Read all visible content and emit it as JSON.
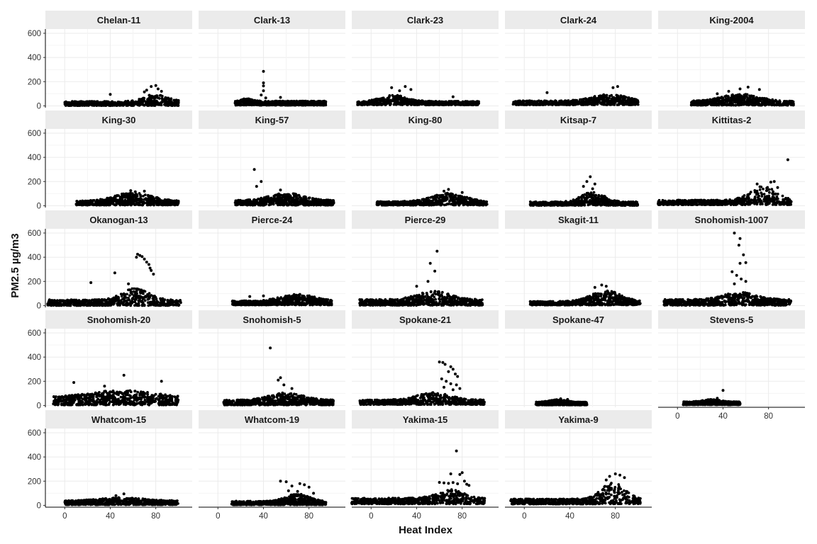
{
  "chart_data": {
    "type": "scatter",
    "layout": "faceted",
    "xlabel": "Heat Index",
    "ylabel": "PM2.5 µg/m3",
    "xlim": [
      -17,
      112
    ],
    "ylim": [
      -15,
      635
    ],
    "x_ticks": [
      0,
      40,
      80
    ],
    "y_ticks": [
      0,
      200,
      400,
      600
    ],
    "grid": true,
    "marker_color": "#000000",
    "strip_color": "#ebebeb",
    "grid_color": "#ebebeb",
    "facets": [
      {
        "title": "Chelan-11",
        "body": {
          "x_min": 0,
          "x_max": 100,
          "base_y": 22,
          "band": 25,
          "hump_center": 80,
          "hump_width": 14,
          "hump_height": 60
        },
        "outliers": [
          [
            40,
            95
          ],
          [
            76,
            160
          ],
          [
            80,
            168
          ],
          [
            82,
            140
          ],
          [
            72,
            130
          ],
          [
            70,
            115
          ],
          [
            85,
            120
          ]
        ]
      },
      {
        "title": "Clark-13",
        "body": {
          "x_min": 15,
          "x_max": 95,
          "base_y": 25,
          "band": 25,
          "hump_center": 25,
          "hump_width": 8,
          "hump_height": 20
        },
        "outliers": [
          [
            40,
            285
          ],
          [
            40,
            190
          ],
          [
            40,
            165
          ],
          [
            40,
            125
          ],
          [
            38,
            90
          ],
          [
            55,
            70
          ],
          [
            42,
            65
          ]
        ]
      },
      {
        "title": "Clark-23",
        "body": {
          "x_min": -12,
          "x_max": 95,
          "base_y": 25,
          "band": 22,
          "hump_center": 20,
          "hump_width": 16,
          "hump_height": 50
        },
        "outliers": [
          [
            30,
            160
          ],
          [
            18,
            150
          ],
          [
            35,
            135
          ],
          [
            72,
            75
          ],
          [
            25,
            125
          ]
        ]
      },
      {
        "title": "Clark-24",
        "body": {
          "x_min": -10,
          "x_max": 100,
          "base_y": 28,
          "band": 25,
          "hump_center": 75,
          "hump_width": 20,
          "hump_height": 55
        },
        "outliers": [
          [
            82,
            160
          ],
          [
            78,
            150
          ],
          [
            20,
            110
          ]
        ]
      },
      {
        "title": "King-2004",
        "body": {
          "x_min": 12,
          "x_max": 102,
          "base_y": 25,
          "band": 25,
          "hump_center": 55,
          "hump_width": 22,
          "hump_height": 60
        },
        "outliers": [
          [
            62,
            155
          ],
          [
            55,
            140
          ],
          [
            72,
            135
          ],
          [
            45,
            120
          ],
          [
            35,
            100
          ]
        ]
      },
      {
        "title": "King-30",
        "body": {
          "x_min": 10,
          "x_max": 100,
          "base_y": 25,
          "band": 25,
          "hump_center": 60,
          "hump_width": 22,
          "hump_height": 70
        },
        "outliers": [
          [
            58,
            125
          ],
          [
            70,
            120
          ],
          [
            62,
            115
          ]
        ]
      },
      {
        "title": "King-57",
        "body": {
          "x_min": 15,
          "x_max": 102,
          "base_y": 28,
          "band": 30,
          "hump_center": 60,
          "hump_width": 20,
          "hump_height": 60
        },
        "outliers": [
          [
            32,
            300
          ],
          [
            38,
            200
          ],
          [
            34,
            160
          ],
          [
            55,
            130
          ]
        ]
      },
      {
        "title": "King-80",
        "body": {
          "x_min": 5,
          "x_max": 102,
          "base_y": 22,
          "band": 22,
          "hump_center": 68,
          "hump_width": 20,
          "hump_height": 70
        },
        "outliers": [
          [
            68,
            135
          ],
          [
            64,
            120
          ],
          [
            80,
            110
          ]
        ]
      },
      {
        "title": "Kitsap-7",
        "body": {
          "x_min": 5,
          "x_max": 100,
          "base_y": 20,
          "band": 22,
          "hump_center": 60,
          "hump_width": 14,
          "hump_height": 80
        },
        "outliers": [
          [
            58,
            240
          ],
          [
            55,
            200
          ],
          [
            62,
            180
          ],
          [
            52,
            160
          ],
          [
            60,
            140
          ]
        ]
      },
      {
        "title": "Kittitas-2",
        "body": {
          "x_min": -17,
          "x_max": 100,
          "base_y": 30,
          "band": 28,
          "hump_center": 75,
          "hump_width": 16,
          "hump_height": 120
        },
        "outliers": [
          [
            97,
            380
          ],
          [
            85,
            200
          ],
          [
            82,
            195
          ],
          [
            70,
            180
          ],
          [
            88,
            150
          ]
        ]
      },
      {
        "title": "Okanogan-13",
        "body": {
          "x_min": -15,
          "x_max": 102,
          "base_y": 28,
          "band": 35,
          "hump_center": 62,
          "hump_width": 16,
          "hump_height": 95
        },
        "outliers": [
          [
            64,
            425
          ],
          [
            66,
            415
          ],
          [
            68,
            405
          ],
          [
            70,
            385
          ],
          [
            72,
            360
          ],
          [
            74,
            340
          ],
          [
            75,
            310
          ],
          [
            76,
            290
          ],
          [
            78,
            260
          ],
          [
            63,
            400
          ],
          [
            44,
            270
          ],
          [
            23,
            190
          ],
          [
            56,
            180
          ]
        ]
      },
      {
        "title": "Pierce-24",
        "body": {
          "x_min": 12,
          "x_max": 100,
          "base_y": 25,
          "band": 25,
          "hump_center": 70,
          "hump_width": 20,
          "hump_height": 55
        },
        "outliers": [
          [
            40,
            80
          ],
          [
            28,
            75
          ]
        ]
      },
      {
        "title": "Pierce-29",
        "body": {
          "x_min": -10,
          "x_max": 98,
          "base_y": 30,
          "band": 35,
          "hump_center": 55,
          "hump_width": 20,
          "hump_height": 70
        },
        "outliers": [
          [
            58,
            450
          ],
          [
            52,
            350
          ],
          [
            56,
            285
          ],
          [
            50,
            200
          ],
          [
            40,
            160
          ]
        ]
      },
      {
        "title": "Skagit-11",
        "body": {
          "x_min": 5,
          "x_max": 102,
          "base_y": 22,
          "band": 22,
          "hump_center": 72,
          "hump_width": 18,
          "hump_height": 90
        },
        "outliers": [
          [
            68,
            170
          ],
          [
            72,
            160
          ],
          [
            62,
            150
          ]
        ]
      },
      {
        "title": "Snohomish-1007",
        "body": {
          "x_min": -12,
          "x_max": 100,
          "base_y": 30,
          "band": 35,
          "hump_center": 55,
          "hump_width": 20,
          "hump_height": 60
        },
        "outliers": [
          [
            50,
            600
          ],
          [
            55,
            555
          ],
          [
            54,
            500
          ],
          [
            58,
            420
          ],
          [
            60,
            355
          ],
          [
            55,
            350
          ],
          [
            48,
            280
          ],
          [
            52,
            250
          ],
          [
            56,
            220
          ],
          [
            60,
            200
          ],
          [
            50,
            180
          ]
        ]
      },
      {
        "title": "Snohomish-20",
        "body": {
          "x_min": -10,
          "x_max": 100,
          "base_y": 40,
          "band": 45,
          "hump_center": 50,
          "hump_width": 40,
          "hump_height": 60
        },
        "outliers": [
          [
            8,
            190
          ],
          [
            52,
            250
          ],
          [
            85,
            200
          ],
          [
            35,
            160
          ]
        ]
      },
      {
        "title": "Snohomish-5",
        "body": {
          "x_min": 5,
          "x_max": 102,
          "base_y": 28,
          "band": 30,
          "hump_center": 60,
          "hump_width": 20,
          "hump_height": 60
        },
        "outliers": [
          [
            46,
            475
          ],
          [
            55,
            230
          ],
          [
            53,
            210
          ],
          [
            58,
            170
          ],
          [
            65,
            140
          ]
        ]
      },
      {
        "title": "Spokane-21",
        "body": {
          "x_min": -10,
          "x_max": 100,
          "base_y": 30,
          "band": 28,
          "hump_center": 55,
          "hump_width": 20,
          "hump_height": 60
        },
        "outliers": [
          [
            60,
            360
          ],
          [
            63,
            355
          ],
          [
            65,
            340
          ],
          [
            70,
            320
          ],
          [
            72,
            300
          ],
          [
            68,
            280
          ],
          [
            74,
            260
          ],
          [
            76,
            240
          ],
          [
            62,
            220
          ],
          [
            66,
            200
          ],
          [
            70,
            180
          ],
          [
            75,
            170
          ],
          [
            64,
            150
          ],
          [
            78,
            140
          ],
          [
            72,
            130
          ]
        ]
      },
      {
        "title": "Spokane-47",
        "body": {
          "x_min": 10,
          "x_max": 55,
          "base_y": 18,
          "band": 18,
          "hump_center": 30,
          "hump_width": 10,
          "hump_height": 20
        },
        "outliers": [
          [
            32,
            55
          ],
          [
            38,
            50
          ]
        ]
      },
      {
        "title": "Stevens-5",
        "body": {
          "x_min": 5,
          "x_max": 55,
          "base_y": 20,
          "band": 18,
          "hump_center": 30,
          "hump_width": 10,
          "hump_height": 20
        },
        "outliers": [
          [
            40,
            125
          ],
          [
            35,
            60
          ]
        ]
      },
      {
        "title": "Whatcom-15",
        "body": {
          "x_min": 0,
          "x_max": 100,
          "base_y": 25,
          "band": 25,
          "hump_center": 50,
          "hump_width": 25,
          "hump_height": 25
        },
        "outliers": [
          [
            52,
            95
          ],
          [
            45,
            80
          ]
        ]
      },
      {
        "title": "Whatcom-19",
        "body": {
          "x_min": 12,
          "x_max": 95,
          "base_y": 22,
          "band": 22,
          "hump_center": 70,
          "hump_width": 14,
          "hump_height": 60
        },
        "outliers": [
          [
            55,
            200
          ],
          [
            60,
            195
          ],
          [
            72,
            180
          ],
          [
            76,
            170
          ],
          [
            65,
            160
          ],
          [
            80,
            150
          ],
          [
            62,
            120
          ],
          [
            70,
            115
          ],
          [
            84,
            100
          ]
        ]
      },
      {
        "title": "Yakima-15",
        "body": {
          "x_min": -17,
          "x_max": 100,
          "base_y": 40,
          "band": 35,
          "hump_center": 70,
          "hump_width": 16,
          "hump_height": 70
        },
        "outliers": [
          [
            75,
            450
          ],
          [
            80,
            270
          ],
          [
            78,
            255
          ],
          [
            60,
            190
          ],
          [
            64,
            185
          ],
          [
            68,
            182
          ],
          [
            72,
            188
          ],
          [
            76,
            178
          ],
          [
            82,
            200
          ],
          [
            84,
            175
          ],
          [
            86,
            165
          ],
          [
            70,
            260
          ]
        ]
      },
      {
        "title": "Yakima-9",
        "body": {
          "x_min": -12,
          "x_max": 102,
          "base_y": 35,
          "band": 30,
          "hump_center": 78,
          "hump_width": 14,
          "hump_height": 140
        },
        "outliers": [
          [
            80,
            260
          ],
          [
            84,
            250
          ],
          [
            75,
            240
          ],
          [
            88,
            230
          ],
          [
            72,
            210
          ]
        ]
      }
    ]
  }
}
